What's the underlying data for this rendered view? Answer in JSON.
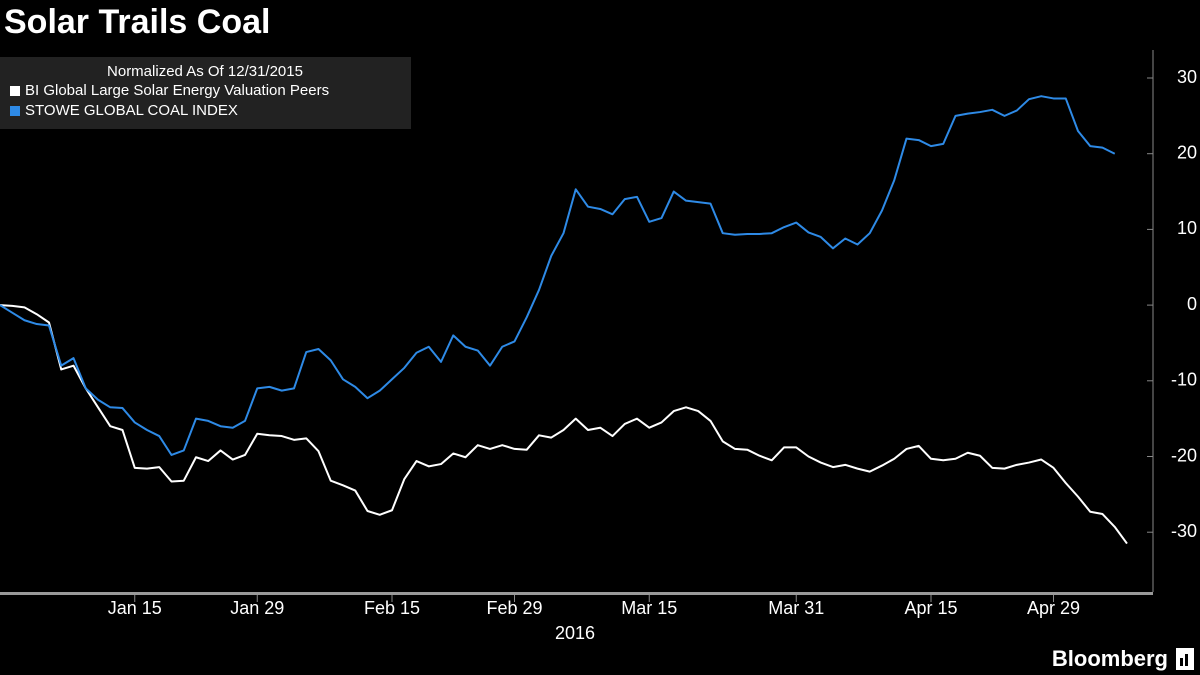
{
  "chart_data": {
    "type": "line",
    "title": "Solar Trails Coal",
    "subtitle": "Normalized As Of 12/31/2015",
    "x_label": "2016",
    "source": "Bloomberg",
    "categories": [
      null,
      null,
      null,
      null,
      null,
      null,
      null,
      null,
      null,
      null,
      null,
      "Jan 15",
      null,
      null,
      null,
      null,
      null,
      null,
      null,
      null,
      null,
      "Jan 29",
      null,
      null,
      null,
      null,
      null,
      null,
      null,
      null,
      null,
      null,
      "Feb 15",
      null,
      null,
      null,
      null,
      null,
      null,
      null,
      null,
      null,
      "Feb 29",
      null,
      null,
      null,
      null,
      null,
      null,
      null,
      null,
      null,
      null,
      "Mar 15",
      null,
      null,
      null,
      null,
      null,
      null,
      null,
      null,
      null,
      null,
      null,
      "Mar 31",
      null,
      null,
      null,
      null,
      null,
      null,
      null,
      null,
      null,
      null,
      "Apr 15",
      null,
      null,
      null,
      null,
      null,
      null,
      null,
      null,
      null,
      "Apr 29",
      null,
      null,
      null,
      null,
      null,
      null
    ],
    "series": [
      {
        "name": "BI Global Large Solar Energy Valuation Peers",
        "color": "#ffffff",
        "values": [
          0,
          -0.1,
          -0.3,
          -1.2,
          -2.3,
          -8.5,
          -8,
          -11,
          -13.5,
          -16,
          -16.5,
          -21.5,
          -21.6,
          -21.4,
          -23.3,
          -23.2,
          -20.1,
          -20.6,
          -19.2,
          -20.4,
          -19.8,
          -17,
          -17.2,
          -17.3,
          -17.8,
          -17.6,
          -19.3,
          -23.2,
          -23.8,
          -24.5,
          -27.2,
          -27.7,
          -27.1,
          -23,
          -20.6,
          -21.3,
          -21,
          -19.6,
          -20.1,
          -18.5,
          -19,
          -18.5,
          -19,
          -19.1,
          -17.2,
          -17.5,
          -16.5,
          -15,
          -16.5,
          -16.2,
          -17.3,
          -15.7,
          -15,
          -16.2,
          -15.5,
          -14,
          -13.5,
          -14,
          -15.3,
          -18,
          -19,
          -19.1,
          -19.9,
          -20.5,
          -18.8,
          -18.8,
          -20,
          -20.8,
          -21.4,
          -21.1,
          -21.6,
          -22,
          -21.2,
          -20.3,
          -19,
          -18.6,
          -20.3,
          -20.5,
          -20.3,
          -19.5,
          -19.9,
          -21.5,
          -21.6,
          -21.1,
          -20.8,
          -20.4,
          -21.5,
          -23.5,
          -25.3,
          -27.3,
          -27.6,
          -29.3,
          -31.5
        ]
      },
      {
        "name": "STOWE GLOBAL COAL INDEX",
        "color": "#2e8ae6",
        "values": [
          0,
          -1,
          -2,
          -2.5,
          -2.7,
          -8,
          -7,
          -11,
          -12.5,
          -13.5,
          -13.6,
          -15.5,
          -16.5,
          -17.3,
          -19.8,
          -19.2,
          -15,
          -15.3,
          -16,
          -16.2,
          -15.3,
          -11,
          -10.8,
          -11.3,
          -11,
          -6.2,
          -5.8,
          -7.3,
          -9.8,
          -10.8,
          -12.3,
          -11.3,
          -9.8,
          -8.3,
          -6.3,
          -5.5,
          -7.5,
          -4,
          -5.5,
          -6,
          -8,
          -5.5,
          -4.8,
          -1.6,
          2,
          6.5,
          9.5,
          15.3,
          13,
          12.7,
          12,
          14,
          14.3,
          11,
          11.5,
          15,
          13.8,
          13.6,
          13.4,
          9.5,
          9.3,
          9.4,
          9.4,
          9.5,
          10.3,
          10.9,
          9.6,
          9,
          7.5,
          8.8,
          8,
          9.5,
          12.5,
          16.5,
          22,
          21.8,
          21,
          21.3,
          25,
          25.3,
          25.5,
          25.8,
          25,
          25.7,
          27.2,
          27.6,
          27.3,
          27.3,
          23,
          21,
          20.8,
          20,
          null
        ]
      }
    ],
    "ylim": [
      -37.9,
      33.7
    ],
    "yticks": [
      -30,
      -20,
      -10,
      0,
      10,
      20,
      30
    ],
    "grid": false,
    "legend": "top-left"
  }
}
